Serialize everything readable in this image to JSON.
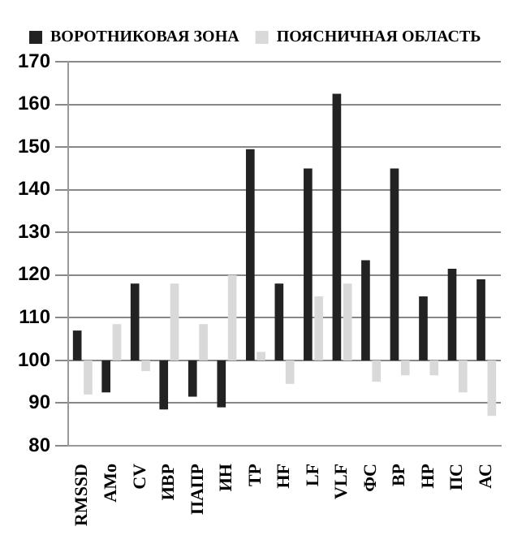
{
  "chart_data": {
    "type": "bar",
    "categories": [
      "RMSSD",
      "AMo",
      "CV",
      "ИВР",
      "ПАПР",
      "ИН",
      "TP",
      "HF",
      "LF",
      "VLF",
      "ФС",
      "ВР",
      "НР",
      "ПС",
      "АС"
    ],
    "series": [
      {
        "name": "ВОРОТНИКОВАЯ ЗОНА",
        "color": "#222222",
        "base": [
          100,
          100,
          100,
          100,
          100,
          100,
          100,
          100,
          100,
          100,
          100,
          100,
          100,
          100,
          100
        ],
        "values": [
          7,
          -7.5,
          18,
          -11.5,
          -8.5,
          -11,
          49.5,
          18,
          45,
          62.5,
          23.5,
          45,
          15,
          21.5,
          19
        ]
      },
      {
        "name": "ПОЯСНИЧНАЯ ОБЛАСТЬ",
        "color": "#d9d9d9",
        "base": [
          100,
          100,
          100,
          100,
          100,
          100,
          100,
          100,
          100,
          100,
          100,
          100,
          100,
          100,
          100
        ],
        "values": [
          -8,
          8.5,
          -2.5,
          18,
          8.5,
          20,
          2,
          -5.5,
          15,
          18,
          -5,
          -3.5,
          -3.5,
          -7.5,
          -13
        ]
      }
    ],
    "ylim": [
      80,
      170
    ],
    "yticks": [
      80,
      90,
      100,
      110,
      120,
      130,
      140,
      150,
      160,
      170
    ],
    "grid": "y",
    "legend": "top left"
  }
}
